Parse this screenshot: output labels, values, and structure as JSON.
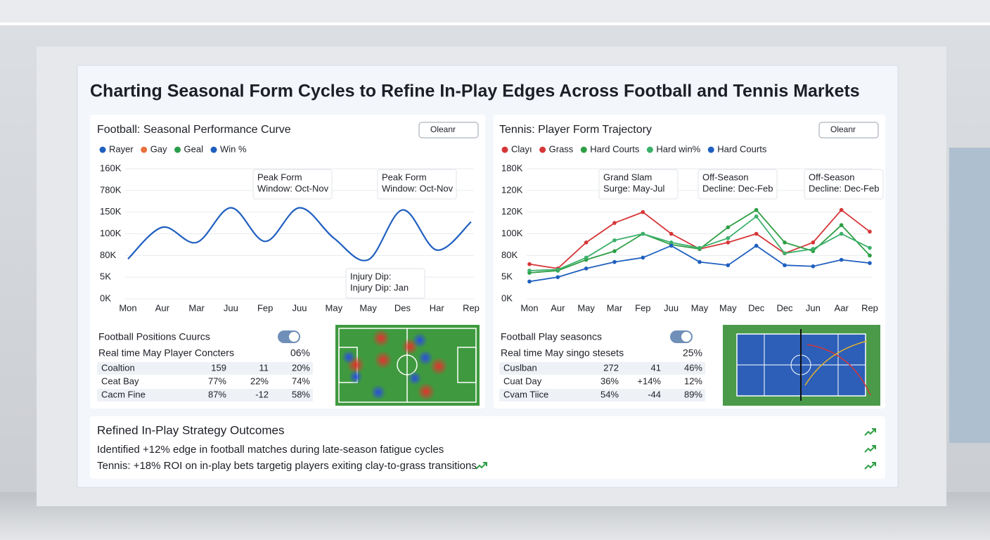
{
  "title": "Charting Seasonal Form Cycles to Refine In-Play Edges Across Football and Tennis Markets",
  "football": {
    "type": "line",
    "title": "Football: Seasonal Performance Curve",
    "button": "Oleanr",
    "legend": [
      {
        "name": "Rayer",
        "color": "#1f5fbf"
      },
      {
        "name": "Gay",
        "color": "#e8703a"
      },
      {
        "name": "Geal",
        "color": "#2a9d4a"
      },
      {
        "name": "Win %",
        "color": "#1f5fbf"
      }
    ],
    "categories": [
      "Mon",
      "Aur",
      "Mar",
      "Juu",
      "Fep",
      "Juu",
      "May",
      "May",
      "Des",
      "Har",
      "Rep"
    ],
    "series": [
      {
        "color": "#1f5fbf",
        "values": [
          1.84,
          3.3,
          2.6,
          4.2,
          2.65,
          4.2,
          2.8,
          1.8,
          4.1,
          2.25,
          3.55
        ]
      }
    ],
    "ylim": [
      0,
      6
    ],
    "yticks": [
      {
        "value": 0,
        "label": "0K"
      },
      {
        "value": 1,
        "label": "5K"
      },
      {
        "value": 2,
        "label": "80K"
      },
      {
        "value": 3,
        "label": "100K"
      },
      {
        "value": 4,
        "label": "150K"
      },
      {
        "value": 5,
        "label": "780K"
      },
      {
        "value": 6,
        "label": "160K"
      }
    ],
    "annotations": [
      {
        "lines": [
          "Peak Form",
          "Window: Oct-Nov"
        ]
      },
      {
        "lines": [
          "Peak Form",
          "Window: Oct-Nov"
        ]
      },
      {
        "lines": [
          "Injury Dip:",
          "Injury Dip: Jan"
        ]
      }
    ]
  },
  "tennis": {
    "type": "line",
    "title": "Tennis: Player Form Trajectory",
    "button": "Oleanr",
    "legend": [
      {
        "name": "Clayı",
        "color": "#d63638"
      },
      {
        "name": "Grass",
        "color": "#d63638"
      },
      {
        "name": "Hard Courts",
        "color": "#2e9e44"
      },
      {
        "name": "Hard win%",
        "color": "#3bb06a"
      },
      {
        "name": "Hard Courts",
        "color": "#1f5fbf"
      }
    ],
    "categories": [
      "Mon",
      "Aur",
      "May",
      "Mar",
      "Fep",
      "Juu",
      "May",
      "May",
      "Dec",
      "Dec",
      "Jun",
      "Aar",
      "Rep"
    ],
    "series": [
      {
        "color": "#d63638",
        "values": [
          1.6,
          1.4,
          2.6,
          3.5,
          4.0,
          3.0,
          2.3,
          2.6,
          3.0,
          2.1,
          2.6,
          4.1,
          3.1
        ]
      },
      {
        "color": "#2e9e44",
        "values": [
          1.2,
          1.3,
          1.8,
          2.2,
          3.0,
          2.5,
          2.3,
          3.3,
          4.1,
          2.6,
          2.2,
          3.4,
          2.0
        ]
      },
      {
        "color": "#3bb06a",
        "values": [
          1.3,
          1.35,
          1.9,
          2.7,
          3.0,
          2.6,
          2.35,
          2.8,
          3.8,
          2.1,
          2.3,
          3.0,
          2.35
        ]
      },
      {
        "color": "#1f5fbf",
        "values": [
          0.8,
          1.0,
          1.4,
          1.7,
          1.9,
          2.45,
          1.7,
          1.55,
          2.45,
          1.55,
          1.5,
          1.8,
          1.65
        ]
      }
    ],
    "ylim": [
      0,
      6
    ],
    "yticks": [
      {
        "value": 0,
        "label": "0K"
      },
      {
        "value": 1,
        "label": "5K"
      },
      {
        "value": 2,
        "label": "80K"
      },
      {
        "value": 3,
        "label": "100K"
      },
      {
        "value": 4,
        "label": "120K"
      },
      {
        "value": 5,
        "label": "120K"
      },
      {
        "value": 6,
        "label": "180K"
      }
    ],
    "annotations": [
      {
        "lines": [
          "Grand Slam",
          "Surge: May-Jul"
        ]
      },
      {
        "lines": [
          "Off-Season",
          "Decline: Dec-Feb"
        ]
      },
      {
        "lines": [
          "Off-Season",
          "Decline: Dec-Feb"
        ]
      }
    ]
  },
  "football_table": {
    "title": "Football Positions Cuurcs",
    "subtitle": "Real time May Player Concters",
    "highlight": "06%",
    "rows": [
      [
        "Coaltion",
        "159",
        "11",
        "20%"
      ],
      [
        "Ceat Bay",
        "77%",
        "22%",
        "74%"
      ],
      [
        "Cacm Fine",
        "87%",
        "-12",
        "58%"
      ]
    ]
  },
  "tennis_table": {
    "title": "Football Play seasoncs",
    "subtitle": "Real time May singo stesets",
    "highlight": "25%",
    "rows": [
      [
        "Cuslban",
        "272",
        "41",
        "46%"
      ],
      [
        "Cuat Day",
        "36%",
        "+14%",
        "12%"
      ],
      [
        "Cvam Tiice",
        "54%",
        "-44",
        "89%"
      ]
    ]
  },
  "outcomes": {
    "title": "Refined In-Play Strategy Outcomes",
    "lines": [
      "Identified +12% edge in football matches during late-season fatigue cycles",
      "Tennis: +18% ROI on in-play bets targetig players exiting clay-to-grass transitions"
    ]
  }
}
